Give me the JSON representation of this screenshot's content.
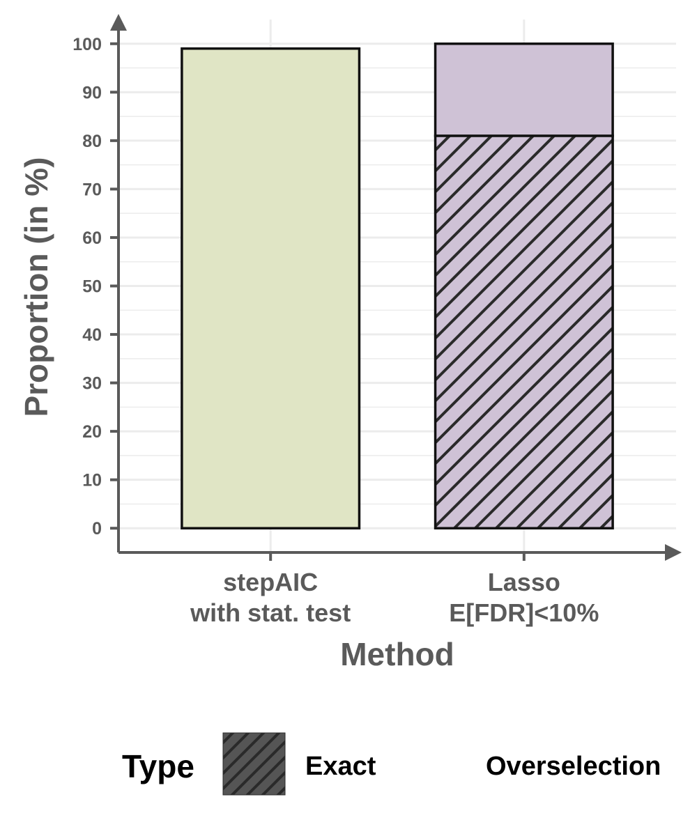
{
  "chart_data": {
    "type": "bar",
    "stacked": true,
    "title": "",
    "xlabel": "Method",
    "ylabel": "Proportion (in %)",
    "ylim": [
      -5,
      105
    ],
    "yticks": [
      0,
      10,
      20,
      30,
      40,
      50,
      60,
      70,
      80,
      90,
      100
    ],
    "grid": true,
    "categories": [
      [
        "stepAIC",
        "with stat. test"
      ],
      [
        "Lasso",
        "E[FDR]<10%"
      ]
    ],
    "category_colors": [
      "#e0e5c5",
      "#cfc2d6"
    ],
    "series": [
      {
        "name": "Exact",
        "values": [
          0,
          81
        ],
        "pattern": "hatch"
      },
      {
        "name": "Overselection",
        "values": [
          99,
          19
        ],
        "pattern": "none"
      }
    ],
    "legend": {
      "title": "Type",
      "position": "bottom",
      "items": [
        {
          "label": "Exact",
          "swatch": "hatch",
          "swatch_color": "#555555"
        },
        {
          "label": "Overselection",
          "swatch": "none",
          "swatch_color": "#ffffff"
        }
      ]
    },
    "colors": {
      "axis": "#5a5a5a",
      "grid": "#ececec",
      "bar_outline": "#111111",
      "hatch_line": "#2a2a2a"
    }
  }
}
